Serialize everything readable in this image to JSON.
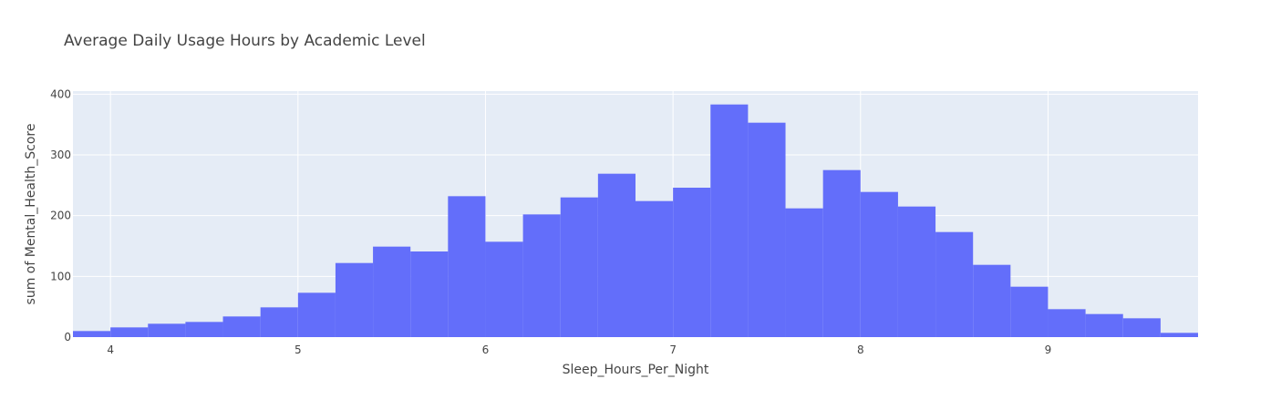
{
  "chart_data": {
    "type": "bar",
    "title": "Average Daily Usage Hours by Academic Level",
    "xlabel": "Sleep_Hours_Per_Night",
    "ylabel": "sum of Mental_Health_Score",
    "xlim": [
      3.8,
      9.8
    ],
    "ylim": [
      0,
      405
    ],
    "bin_width": 0.2,
    "x_ticks": [
      4,
      5,
      6,
      7,
      8,
      9
    ],
    "y_ticks": [
      0,
      100,
      200,
      300,
      400
    ],
    "grid": true,
    "legend": "none",
    "bar_color": "#636efa",
    "plot_bg": "#e5ecf6",
    "bins": [
      3.8,
      4.0,
      4.2,
      4.4,
      4.6,
      4.8,
      5.0,
      5.2,
      5.4,
      5.6,
      5.8,
      6.0,
      6.2,
      6.4,
      6.6,
      6.8,
      7.0,
      7.2,
      7.4,
      7.6,
      7.8,
      8.0,
      8.2,
      8.4,
      8.6,
      8.8,
      9.0,
      9.2,
      9.4,
      9.6
    ],
    "values": [
      10,
      16,
      22,
      25,
      34,
      49,
      73,
      122,
      149,
      141,
      232,
      157,
      202,
      230,
      269,
      224,
      246,
      383,
      353,
      212,
      275,
      239,
      215,
      173,
      119,
      83,
      46,
      38,
      31,
      7
    ]
  }
}
